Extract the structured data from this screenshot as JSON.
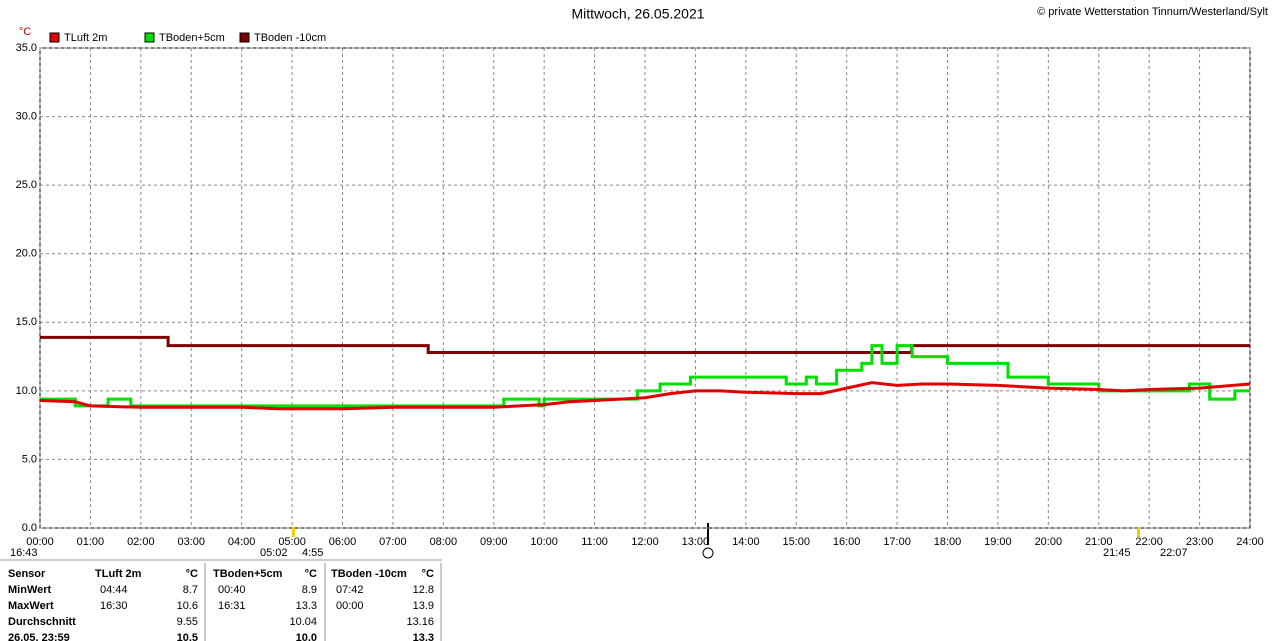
{
  "chart_data": {
    "type": "line",
    "title": "Mittwoch, 26.05.2021",
    "credit": "© private Wetterstation Tinnum/Westerland/Sylt",
    "y_label": "°C",
    "grid": true,
    "xlim": [
      0,
      24
    ],
    "xticks": [
      {
        "value": 0,
        "label": "00:00"
      },
      {
        "value": 1,
        "label": "01:00"
      },
      {
        "value": 2,
        "label": "02:00"
      },
      {
        "value": 3,
        "label": "03:00"
      },
      {
        "value": 4,
        "label": "04:00"
      },
      {
        "value": 5,
        "label": "05:00"
      },
      {
        "value": 6,
        "label": "06:00"
      },
      {
        "value": 7,
        "label": "07:00"
      },
      {
        "value": 8,
        "label": "08:00"
      },
      {
        "value": 9,
        "label": "09:00"
      },
      {
        "value": 10,
        "label": "10:00"
      },
      {
        "value": 11,
        "label": "11:00"
      },
      {
        "value": 12,
        "label": "12:00"
      },
      {
        "value": 13,
        "label": "13:00"
      },
      {
        "value": 14,
        "label": "14:00"
      },
      {
        "value": 15,
        "label": "15:00"
      },
      {
        "value": 16,
        "label": "16:00"
      },
      {
        "value": 17,
        "label": "17:00"
      },
      {
        "value": 18,
        "label": "18:00"
      },
      {
        "value": 19,
        "label": "19:00"
      },
      {
        "value": 20,
        "label": "20:00"
      },
      {
        "value": 21,
        "label": "21:00"
      },
      {
        "value": 22,
        "label": "22:00"
      },
      {
        "value": 23,
        "label": "23:00"
      },
      {
        "value": 24,
        "label": "24:00"
      }
    ],
    "ylim": [
      0,
      35
    ],
    "yticks": [
      {
        "value": 0,
        "label": "0.0"
      },
      {
        "value": 5,
        "label": "5.0"
      },
      {
        "value": 10,
        "label": "10.0"
      },
      {
        "value": 15,
        "label": "15.0"
      },
      {
        "value": 20,
        "label": "20.0"
      },
      {
        "value": 25,
        "label": "25.0"
      },
      {
        "value": 30,
        "label": "30.0"
      },
      {
        "value": 35,
        "label": "35.0"
      }
    ],
    "series": [
      {
        "name": "TLuft 2m",
        "color": "#e00000",
        "x": [
          0,
          0.7,
          1,
          2,
          3,
          4,
          4.73,
          5,
          6,
          7,
          8,
          9,
          9.5,
          10,
          10.5,
          11,
          11.5,
          12,
          12.5,
          13,
          13.5,
          14,
          15,
          15.5,
          16,
          16.5,
          17,
          17.5,
          18,
          19,
          20,
          21,
          21.5,
          22,
          23,
          24
        ],
        "values": [
          9.3,
          9.2,
          8.9,
          8.8,
          8.8,
          8.8,
          8.7,
          8.7,
          8.7,
          8.8,
          8.8,
          8.8,
          8.9,
          9.0,
          9.2,
          9.3,
          9.4,
          9.5,
          9.8,
          10.0,
          10.0,
          9.9,
          9.8,
          9.8,
          10.2,
          10.6,
          10.4,
          10.5,
          10.5,
          10.4,
          10.2,
          10.1,
          10.0,
          10.1,
          10.2,
          10.5
        ]
      },
      {
        "name": "TBoden+5cm",
        "color": "#00e000",
        "x": [
          0,
          0.7,
          0.7,
          1.35,
          1.35,
          1.8,
          1.8,
          9.2,
          9.2,
          9.9,
          9.9,
          10,
          10,
          11.85,
          11.85,
          12.3,
          12.3,
          12.9,
          12.9,
          14.8,
          14.8,
          15.2,
          15.2,
          15.4,
          15.4,
          15.8,
          15.8,
          16.3,
          16.3,
          16.5,
          16.5,
          16.7,
          16.7,
          17,
          17,
          17.3,
          17.3,
          18,
          18,
          19.2,
          19.2,
          20,
          20,
          21,
          21,
          22.8,
          22.8,
          23.2,
          23.2,
          23.7,
          23.7,
          24
        ],
        "values": [
          9.4,
          9.4,
          8.9,
          8.9,
          9.4,
          9.4,
          8.9,
          8.9,
          9.4,
          9.4,
          8.9,
          8.9,
          9.4,
          9.4,
          10.0,
          10.0,
          10.5,
          10.5,
          11.0,
          11.0,
          10.5,
          10.5,
          11.0,
          11.0,
          10.5,
          10.5,
          11.5,
          11.5,
          12.0,
          12.0,
          13.3,
          13.3,
          12.0,
          12.0,
          13.3,
          13.3,
          12.5,
          12.5,
          12.0,
          12.0,
          11.0,
          11.0,
          10.5,
          10.5,
          10.0,
          10.0,
          10.5,
          10.5,
          9.4,
          9.4,
          10.0,
          10.0
        ]
      },
      {
        "name": "TBoden -10cm",
        "color": "#800000",
        "x": [
          0,
          2.54,
          2.54,
          7.7,
          7.7,
          17.29,
          17.29,
          24
        ],
        "values": [
          13.9,
          13.9,
          13.3,
          13.3,
          12.8,
          12.8,
          13.3,
          13.3
        ]
      }
    ]
  },
  "cursors": [
    "16:43",
    "05:02",
    "4:55",
    "21:45",
    "22:07"
  ],
  "table": {
    "header": [
      "Sensor",
      "TLuft 2m",
      "°C",
      "TBoden+5cm",
      "°C",
      "TBoden -10cm",
      "°C"
    ],
    "rows": [
      [
        "MinWert",
        "04:44",
        "8.7",
        "00:40",
        "8.9",
        "07:42",
        "12.8"
      ],
      [
        "MaxWert",
        "16:30",
        "10.6",
        "16:31",
        "13.3",
        "00:00",
        "13.9"
      ],
      [
        "Durchschnitt",
        "",
        "9.55",
        "",
        "10.04",
        "",
        "13.16"
      ],
      [
        "26.05. 23:59",
        "",
        "10.5",
        "",
        "10.0",
        "",
        "13.3"
      ]
    ]
  }
}
